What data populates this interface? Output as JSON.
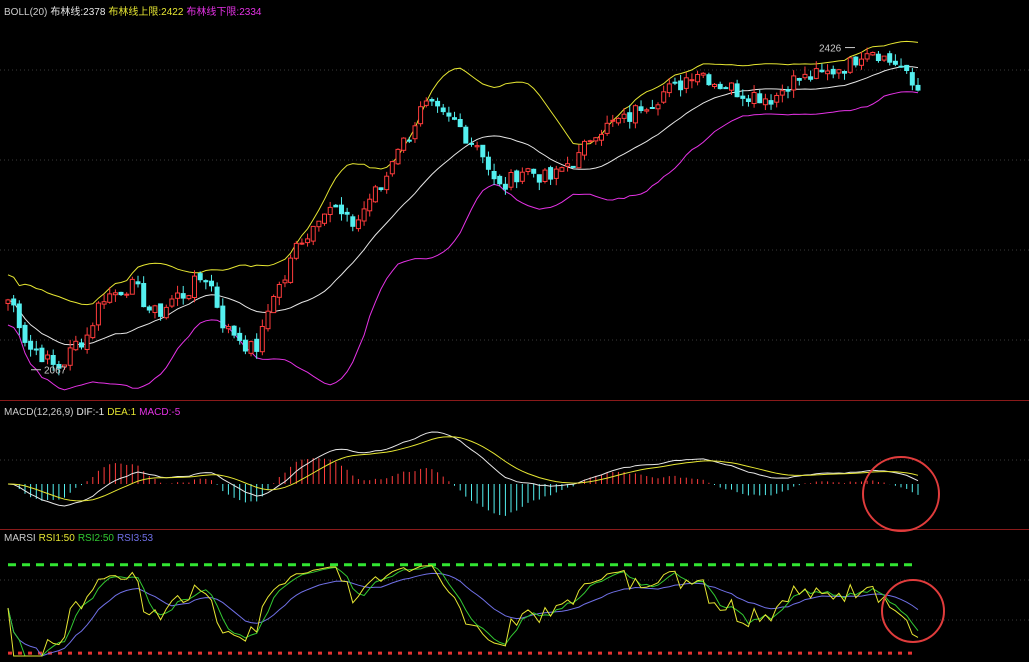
{
  "boll": {
    "label": "BOLL(20)",
    "mid_label": "布林线:2378",
    "upper_label": "布林线上限:2422",
    "lower_label": "布林线下限:2334",
    "high_annotation": "2426",
    "low_annotation": "2067"
  },
  "macd": {
    "label": "MACD(12,26,9)",
    "dif_label": "DIF:-1",
    "dea_label": "DEA:1",
    "macd_label": "MACD:-5"
  },
  "rsi": {
    "label": "MARSI",
    "rsi1_label": "RSI1:50",
    "rsi2_label": "RSI2:50",
    "rsi3_label": "RSI3:53"
  },
  "colors": {
    "up": "#ff3c3c",
    "down": "#54f0f0",
    "mid": "#e6e6e6",
    "upper": "#e6e632",
    "lower": "#e632e6",
    "dea": "#e6e632",
    "rsi1": "#e6e632",
    "rsi2": "#32c832",
    "rsi3": "#7070e6",
    "high_level": "#32e632",
    "low_level": "#e63232",
    "circle": "#e03c3c"
  },
  "chart_data": [
    {
      "type": "candlestick",
      "panel": "price",
      "indicator": "BOLL(20)",
      "ylim": [
        2050,
        2440
      ],
      "mid_current": 2378,
      "upper_current": 2422,
      "lower_current": 2334,
      "highest": 2426,
      "lowest": 2067,
      "close_keypoints": [
        2145,
        2090,
        2070,
        2100,
        2150,
        2160,
        2130,
        2150,
        2170,
        2110,
        2090,
        2160,
        2215,
        2250,
        2230,
        2265,
        2320,
        2360,
        2345,
        2320,
        2270,
        2290,
        2280,
        2300,
        2335,
        2345,
        2365,
        2380,
        2400,
        2385,
        2375,
        2370,
        2390,
        2395,
        2405,
        2425,
        2410,
        2380
      ]
    },
    {
      "type": "bar",
      "panel": "macd",
      "indicator": "MACD(12,26,9)",
      "dif": -1,
      "dea": 1,
      "macd": -5
    },
    {
      "type": "line",
      "panel": "rsi",
      "indicator": "MARSI",
      "ylim": [
        0,
        100
      ],
      "rsi1": 50,
      "rsi2": 50,
      "rsi3": 53
    }
  ]
}
